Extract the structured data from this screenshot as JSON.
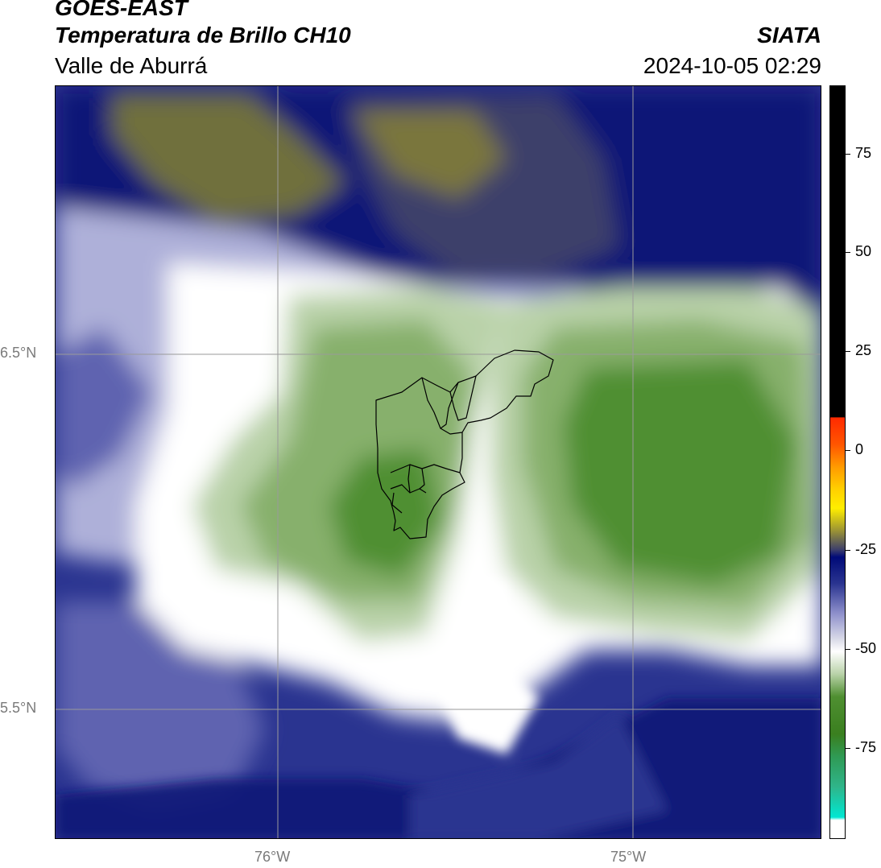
{
  "header": {
    "line1": "GOES-EAST",
    "line2": "Temperatura de Brillo CH10",
    "line3": "Valle de Aburrá",
    "brand": "SIATA",
    "timestamp": "2024-10-05 02:29"
  },
  "axes": {
    "lat_labels": [
      "6.5°N",
      "5.5°N"
    ],
    "lon_labels": [
      "76°W",
      "75°W"
    ]
  },
  "colorbar": {
    "tick_labels": [
      "75",
      "50",
      "25",
      "0",
      "-25",
      "-50",
      "-75"
    ],
    "colors": {
      "black": "#000000",
      "red": "#ff2a00",
      "orange": "#ff8c00",
      "yellow": "#ffee00",
      "olive": "#8c8a3c",
      "navy": "#000a78",
      "lavender": "#b5b7e0",
      "white": "#ffffff",
      "green": "#3a7f1f",
      "teal": "#2fb58a",
      "cyan": "#00e7d2"
    }
  },
  "map": {
    "colors": {
      "deep_navy": "#0b1577",
      "navy": "#2a3490",
      "blue_violet": "#5e64b0",
      "lavender": "#aeb0d9",
      "pale": "#dcdde9",
      "white": "#ffffff",
      "olive": "#6f6f3e",
      "olive_light": "#9a9235",
      "green_pale": "#b9d2a9",
      "green_mid": "#87b06c",
      "green_dark": "#4f8f31",
      "grid": "#9a9a9a",
      "boundary": "#000000"
    }
  }
}
